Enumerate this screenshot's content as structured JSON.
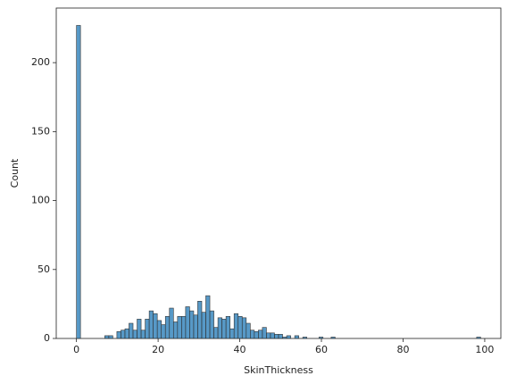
{
  "chart_data": {
    "type": "histogram",
    "x_label": "SkinThickness",
    "y_label": "Count",
    "bins": [
      0,
      0.99,
      1.98,
      2.97,
      3.96,
      4.95,
      5.94,
      6.93,
      7.92,
      8.91,
      9.9,
      10.89,
      11.88,
      12.87,
      13.86,
      14.85,
      15.84,
      16.83,
      17.82,
      18.81,
      19.8,
      20.79,
      21.78,
      22.77,
      23.76,
      24.75,
      25.74,
      26.73,
      27.72,
      28.71,
      29.7,
      30.69,
      31.68,
      32.67,
      33.66,
      34.65,
      35.64,
      36.63,
      37.62,
      38.61,
      39.6,
      40.59,
      41.58,
      42.57,
      43.56,
      44.55,
      45.54,
      46.53,
      47.52,
      48.51,
      49.5,
      50.49,
      51.48,
      52.47,
      53.46,
      54.45,
      55.44,
      56.43,
      57.42,
      58.41,
      59.4,
      60.39,
      61.38,
      62.37,
      63.36,
      64.35,
      65.34,
      66.33,
      67.32,
      68.31,
      69.3,
      70.29,
      71.28,
      72.27,
      73.26,
      74.25,
      75.24,
      76.23,
      77.22,
      78.21,
      79.2,
      80.19,
      81.18,
      82.17,
      83.16,
      84.15,
      85.14,
      86.13,
      87.12,
      88.11,
      89.1,
      90.09,
      91.08,
      92.07,
      93.06,
      94.05,
      95.04,
      96.03,
      97.02,
      98.01,
      99
    ],
    "values": [
      227,
      0,
      0,
      0,
      0,
      0,
      0,
      2,
      2,
      0,
      5,
      6,
      7,
      11,
      6,
      14,
      6,
      14,
      20,
      18,
      13,
      10,
      16,
      22,
      12,
      16,
      16,
      23,
      20,
      17,
      27,
      19,
      31,
      20,
      8,
      15,
      14,
      16,
      7,
      18,
      16,
      15,
      11,
      6,
      5,
      6,
      8,
      4,
      4,
      3,
      3,
      1,
      2,
      0,
      2,
      0,
      1,
      0,
      0,
      0,
      1,
      0,
      0,
      1,
      0,
      0,
      0,
      0,
      0,
      0,
      0,
      0,
      0,
      0,
      0,
      0,
      0,
      0,
      0,
      0,
      0,
      0,
      0,
      0,
      0,
      0,
      0,
      0,
      0,
      0,
      0,
      0,
      0,
      0,
      0,
      0,
      0,
      0,
      0,
      1
    ],
    "color": "#1f77b4",
    "xlim": [
      -4.95,
      103.95
    ],
    "ylim": [
      0,
      239.6
    ],
    "xticks": [
      0,
      20,
      40,
      60,
      80,
      100
    ],
    "yticks": [
      0,
      50,
      100,
      150,
      200
    ]
  }
}
